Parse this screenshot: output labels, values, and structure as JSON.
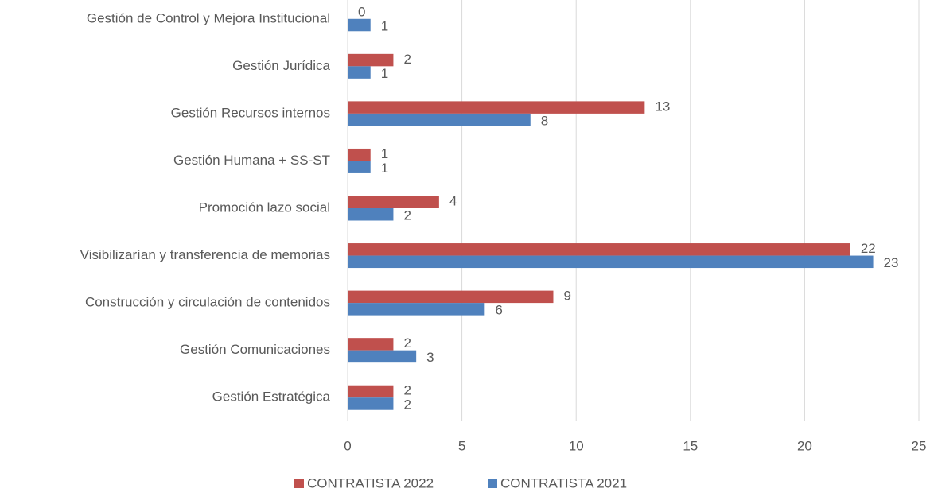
{
  "chart_data": {
    "type": "bar",
    "orientation": "horizontal",
    "categories": [
      "Gestión de Control y Mejora Institucional",
      "Gestión Jurídica",
      "Gestión Recursos internos",
      "Gestión Humana + SS-ST",
      "Promoción lazo social",
      "Visibilizarían y transferencia de memorias",
      "Construcción y circulación de contenidos",
      "Gestión Comunicaciones",
      "Gestión Estratégica"
    ],
    "series": [
      {
        "name": "CONTRATISTA 2022",
        "color": "#c0504d",
        "values": [
          0,
          2,
          13,
          1,
          4,
          22,
          9,
          2,
          2
        ]
      },
      {
        "name": "CONTRATISTA 2021",
        "color": "#4f81bd",
        "values": [
          1,
          1,
          8,
          1,
          2,
          23,
          6,
          3,
          2
        ]
      }
    ],
    "xlim": [
      0,
      25
    ],
    "xticks": [
      0,
      5,
      10,
      15,
      20,
      25
    ],
    "grid": true,
    "legend": "bottom"
  }
}
